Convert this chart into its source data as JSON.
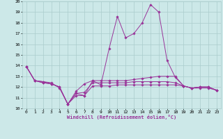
{
  "x": [
    0,
    1,
    2,
    3,
    4,
    5,
    6,
    7,
    8,
    9,
    10,
    11,
    12,
    13,
    14,
    15,
    16,
    17,
    18,
    19,
    20,
    21,
    22,
    23
  ],
  "line1": [
    13.9,
    12.6,
    12.5,
    12.4,
    11.9,
    10.4,
    11.4,
    11.2,
    12.6,
    12.2,
    15.6,
    18.6,
    16.6,
    17.0,
    18.0,
    19.7,
    19.0,
    14.5,
    12.9,
    12.1,
    11.9,
    12.0,
    12.0,
    11.7
  ],
  "line2": [
    13.9,
    12.6,
    12.5,
    12.3,
    12.0,
    10.4,
    11.6,
    12.3,
    12.6,
    12.6,
    12.6,
    12.6,
    12.6,
    12.7,
    12.8,
    12.9,
    13.0,
    13.0,
    13.0,
    12.1,
    11.9,
    12.0,
    12.0,
    11.7
  ],
  "line3": [
    13.9,
    12.6,
    12.4,
    12.3,
    12.0,
    10.4,
    11.4,
    11.5,
    12.4,
    12.4,
    12.4,
    12.4,
    12.4,
    12.5,
    12.5,
    12.5,
    12.5,
    12.5,
    12.4,
    12.1,
    11.9,
    12.0,
    12.0,
    11.7
  ],
  "line4": [
    13.9,
    12.6,
    12.4,
    12.3,
    12.0,
    10.4,
    11.2,
    11.2,
    12.1,
    12.1,
    12.1,
    12.2,
    12.2,
    12.2,
    12.2,
    12.2,
    12.2,
    12.2,
    12.2,
    12.1,
    11.9,
    11.9,
    11.9,
    11.7
  ],
  "color": "#993399",
  "bg_color": "#cce8e8",
  "grid_color": "#aacccc",
  "xlabel": "Windchill (Refroidissement éolien,°C)",
  "xlim": [
    -0.5,
    23.5
  ],
  "ylim": [
    10,
    20
  ],
  "yticks": [
    10,
    11,
    12,
    13,
    14,
    15,
    16,
    17,
    18,
    19,
    20
  ],
  "xticks": [
    0,
    1,
    2,
    3,
    4,
    5,
    6,
    7,
    8,
    9,
    10,
    11,
    12,
    13,
    14,
    15,
    16,
    17,
    18,
    19,
    20,
    21,
    22,
    23
  ]
}
